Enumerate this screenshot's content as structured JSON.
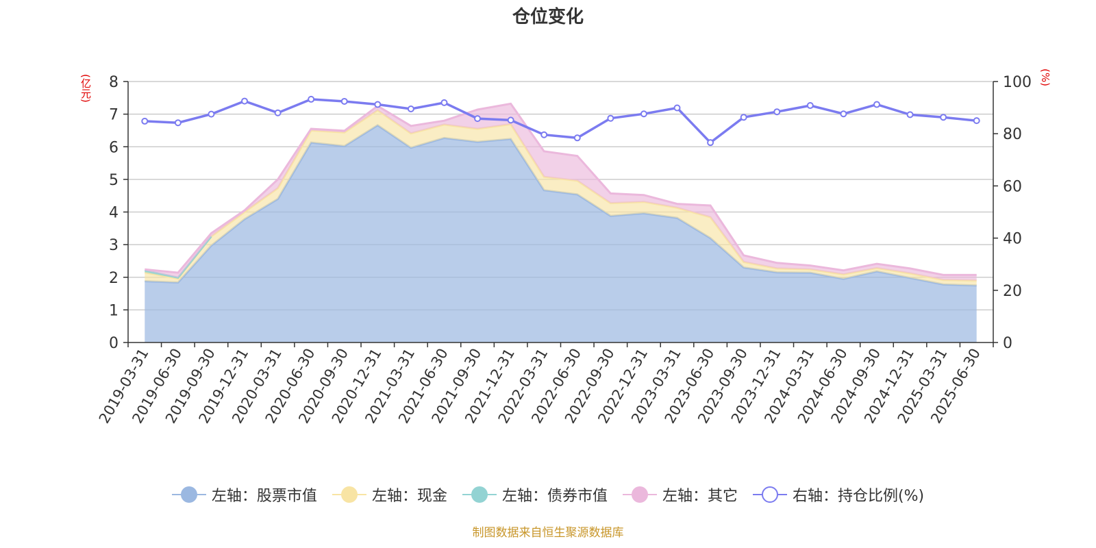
{
  "chart_data": {
    "type": "area",
    "title": "仓位变化",
    "left_unit": "(亿元)",
    "right_unit": "(%)",
    "categories": [
      "2019-03-31",
      "2019-06-30",
      "2019-09-30",
      "2019-12-31",
      "2020-03-31",
      "2020-06-30",
      "2020-09-30",
      "2020-12-31",
      "2021-03-31",
      "2021-06-30",
      "2021-09-30",
      "2021-12-31",
      "2022-03-31",
      "2022-06-30",
      "2022-09-30",
      "2022-12-31",
      "2023-03-31",
      "2023-06-30",
      "2023-09-30",
      "2023-12-31",
      "2024-03-31",
      "2024-06-30",
      "2024-09-30",
      "2024-12-31",
      "2025-03-31",
      "2025-06-30"
    ],
    "y_left": {
      "min": 0,
      "max": 8,
      "ticks": [
        "0",
        "1",
        "2",
        "3",
        "4",
        "5",
        "6",
        "7",
        "8"
      ]
    },
    "y_right": {
      "min": 0,
      "max": 100,
      "ticks": [
        "0",
        "20",
        "40",
        "60",
        "80",
        "100"
      ]
    },
    "grid": true,
    "legend_position": "bottom",
    "series": [
      {
        "name": "左轴：股票市值",
        "axis": "left",
        "color": "#9bb8e1",
        "values": [
          1.88,
          1.84,
          2.97,
          3.78,
          4.4,
          6.13,
          6.02,
          6.66,
          5.97,
          6.27,
          6.15,
          6.24,
          4.67,
          4.54,
          3.88,
          3.96,
          3.82,
          3.2,
          2.3,
          2.15,
          2.14,
          1.95,
          2.18,
          1.98,
          1.78,
          1.75
        ]
      },
      {
        "name": "左轴：现金",
        "axis": "left",
        "color": "#f8e4a4",
        "values": [
          0.27,
          0.12,
          0.28,
          0.22,
          0.33,
          0.37,
          0.42,
          0.46,
          0.44,
          0.41,
          0.4,
          0.45,
          0.41,
          0.42,
          0.39,
          0.35,
          0.31,
          0.64,
          0.17,
          0.12,
          0.1,
          0.14,
          0.1,
          0.14,
          0.14,
          0.15
        ]
      },
      {
        "name": "左轴：债券市值",
        "axis": "left",
        "color": "#93d3d3",
        "values": [
          0.06,
          0.03,
          0,
          0,
          0,
          0,
          0,
          0,
          0,
          0,
          0,
          0,
          0,
          0,
          0,
          0,
          0,
          0,
          0,
          0,
          0,
          0,
          0,
          0,
          0,
          0
        ]
      },
      {
        "name": "左轴：其它",
        "axis": "left",
        "color": "#ebb8dc",
        "values": [
          0.03,
          0.15,
          0.1,
          0.05,
          0.27,
          0.05,
          0.05,
          0.13,
          0.23,
          0.12,
          0.59,
          0.63,
          0.78,
          0.76,
          0.3,
          0.21,
          0.12,
          0.36,
          0.2,
          0.17,
          0.12,
          0.12,
          0.13,
          0.15,
          0.15,
          0.17
        ]
      },
      {
        "name": "右轴：持仓比例(%)",
        "axis": "right",
        "color": "#7b7bf0",
        "values": [
          84.8,
          84.2,
          87.5,
          92.5,
          88.0,
          93.2,
          92.4,
          91.2,
          89.5,
          91.9,
          85.8,
          85.2,
          79.6,
          78.4,
          85.9,
          87.6,
          89.9,
          76.6,
          86.3,
          88.4,
          90.8,
          87.6,
          91.2,
          87.3,
          86.3,
          85.0
        ]
      }
    ],
    "source": "制图数据来自恒生聚源数据库"
  }
}
